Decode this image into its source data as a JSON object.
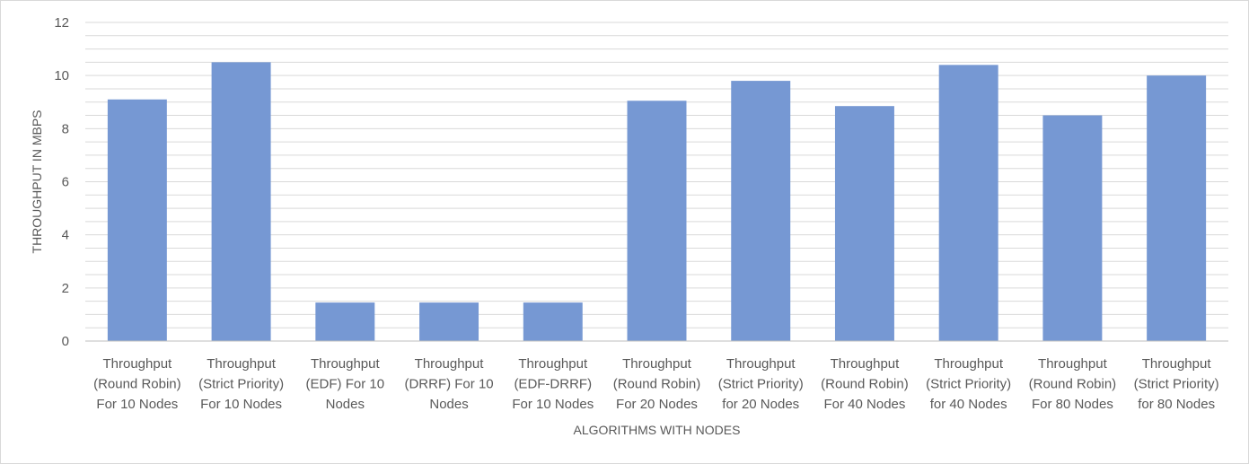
{
  "chart_data": {
    "type": "bar",
    "categories": [
      [
        "Throughput",
        "(Round Robin)",
        "For 10 Nodes"
      ],
      [
        "Throughput",
        "(Strict Priority)",
        "For 10 Nodes"
      ],
      [
        "Throughput",
        "(EDF) For 10",
        "Nodes"
      ],
      [
        "Throughput",
        "(DRRF) For 10",
        "Nodes"
      ],
      [
        "Throughput",
        "(EDF-DRRF)",
        "For 10 Nodes"
      ],
      [
        "Throughput",
        "(Round Robin)",
        "For 20 Nodes"
      ],
      [
        "Throughput",
        "(Strict Priority)",
        "for 20 Nodes"
      ],
      [
        "Throughput",
        "(Round Robin)",
        "For 40 Nodes"
      ],
      [
        "Throughput",
        "(Strict Priority)",
        "for 40 Nodes"
      ],
      [
        "Throughput",
        "(Round Robin)",
        "For 80 Nodes"
      ],
      [
        "Throughput",
        "(Strict Priority)",
        "for 80 Nodes"
      ]
    ],
    "values": [
      9.1,
      10.5,
      1.45,
      1.45,
      1.45,
      9.05,
      9.8,
      8.85,
      10.4,
      8.5,
      10.0
    ],
    "xlabel": "ALGORITHMS WITH NODES",
    "ylabel": "THROUGHPUT IN MBPS",
    "ylim": [
      0,
      12
    ],
    "y_ticks": [
      0,
      2,
      4,
      6,
      8,
      10,
      12
    ],
    "minor_grid_step": 0.5,
    "grid": true,
    "legend": "none",
    "bar_color": "#7698d3",
    "grid_color": "#d9d9d9",
    "text_color": "#595959"
  }
}
